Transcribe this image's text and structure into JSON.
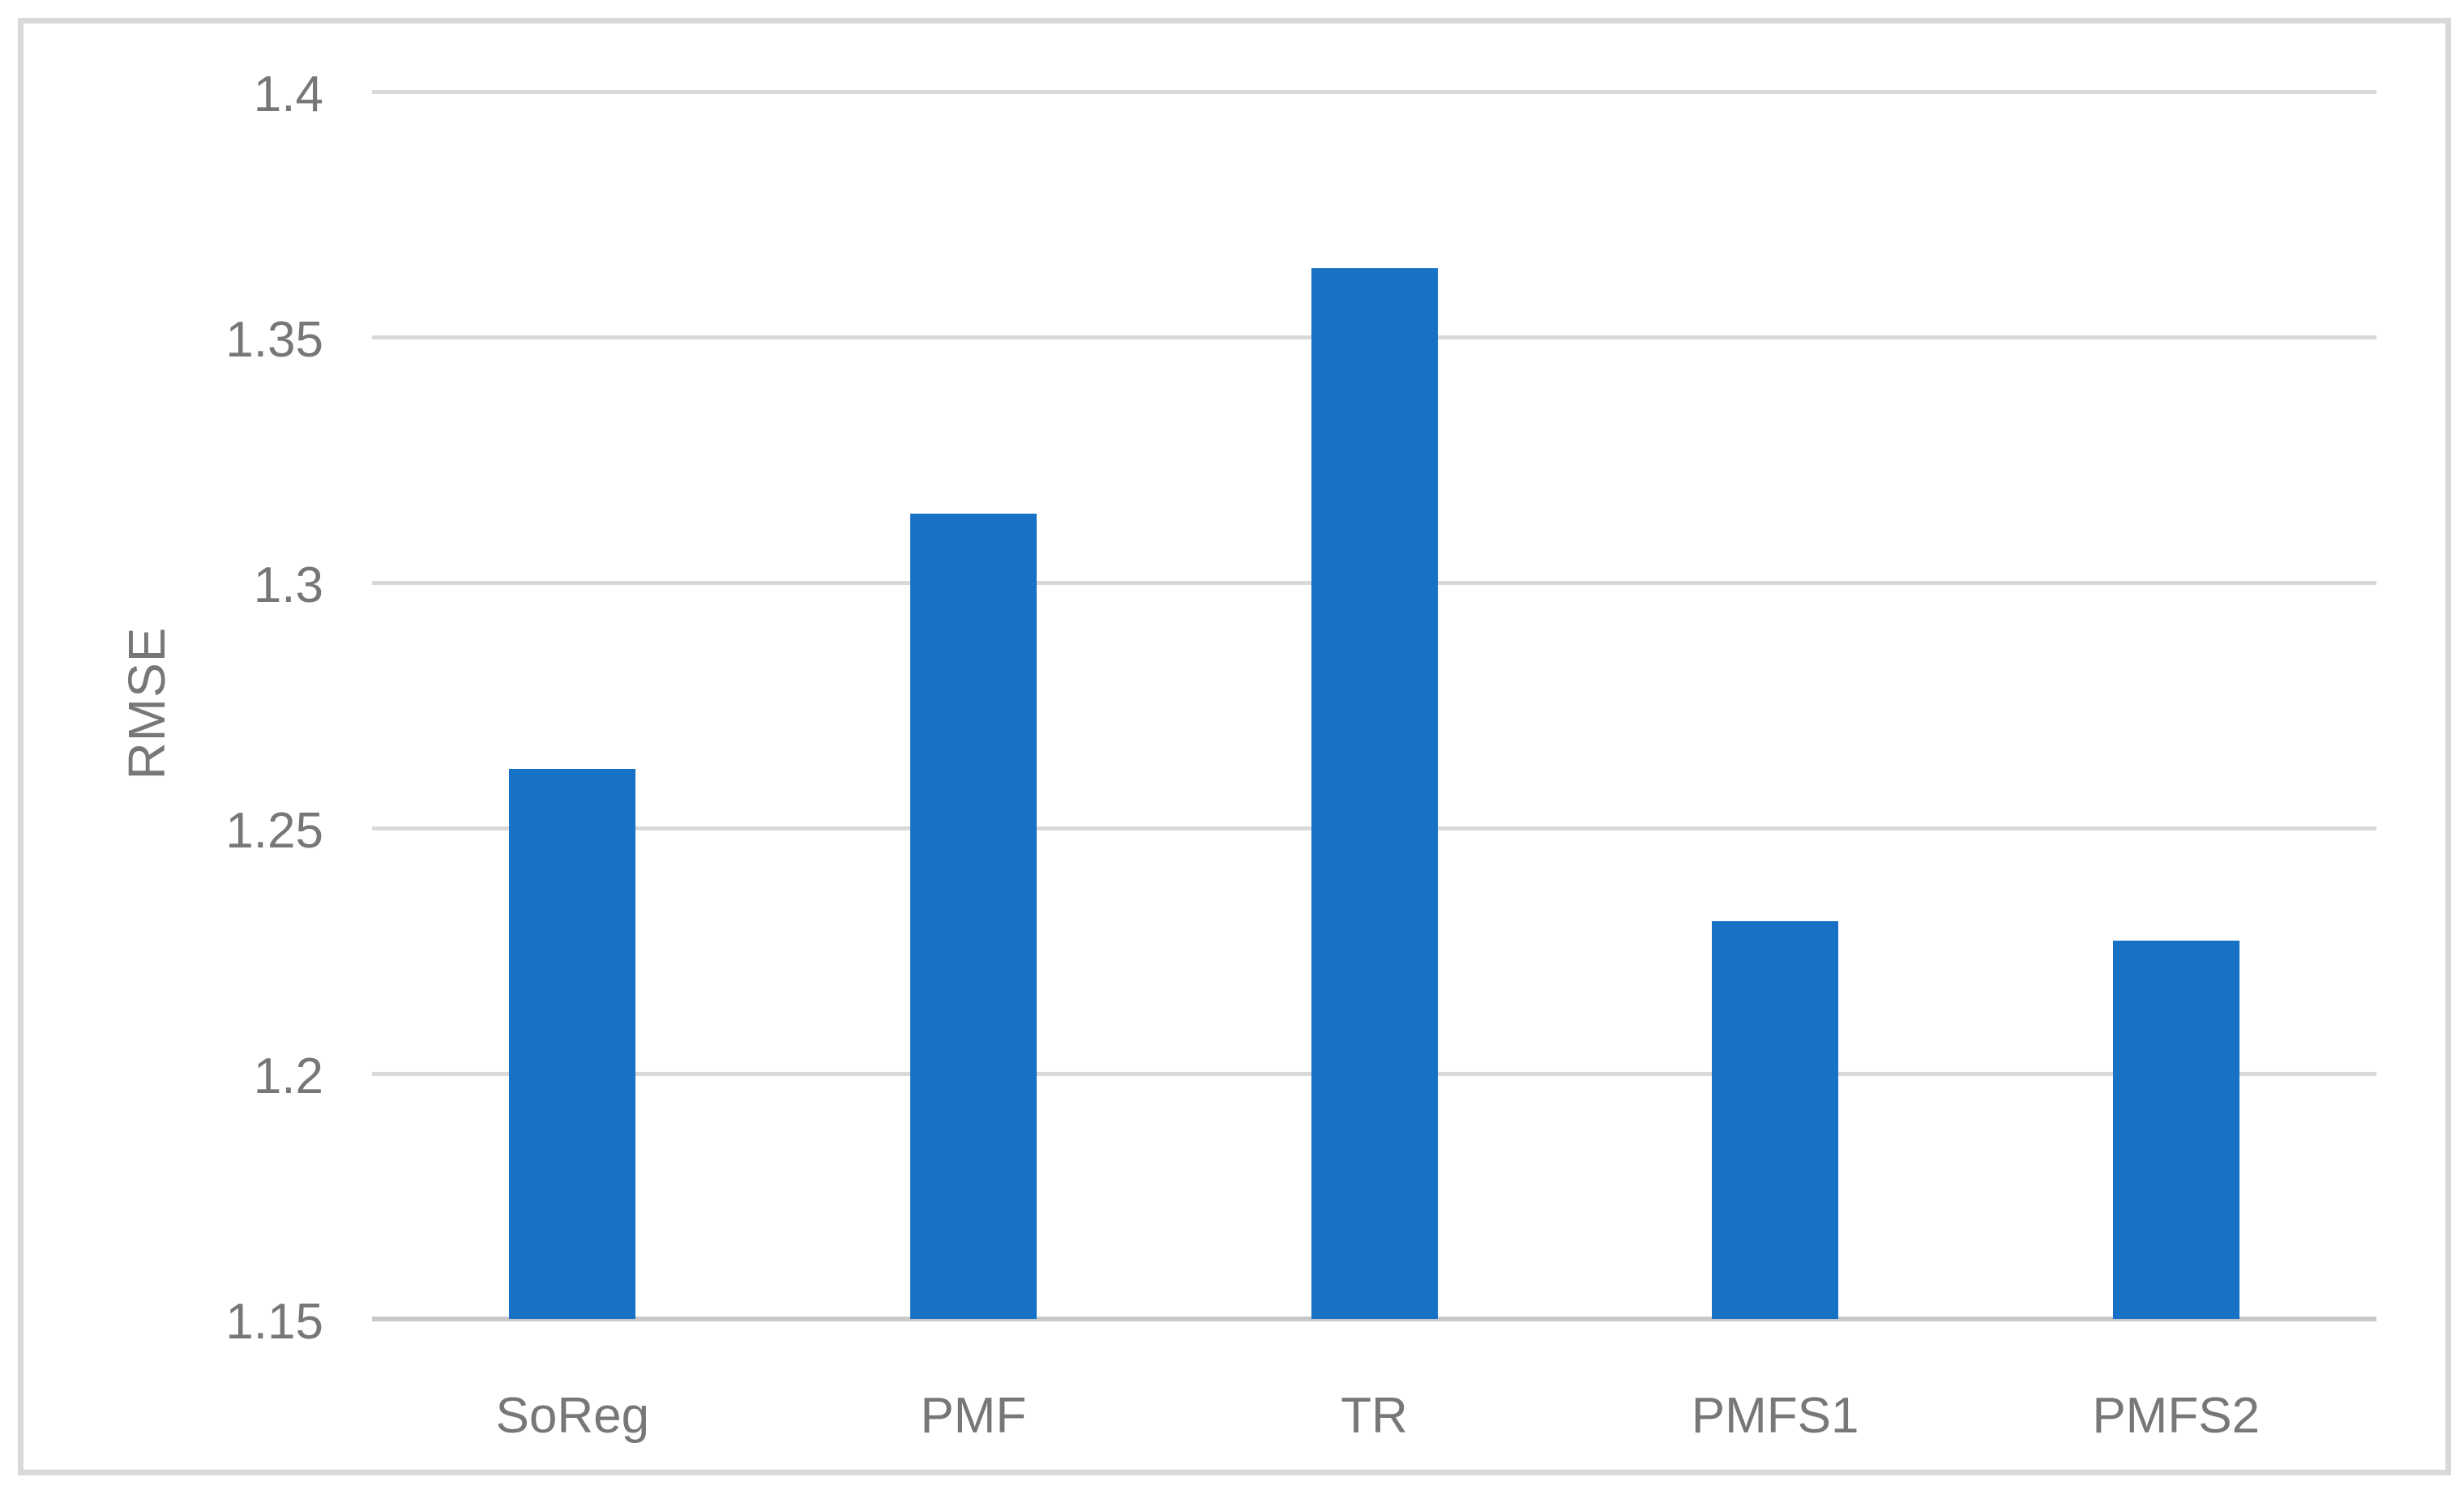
{
  "chart_data": {
    "type": "bar",
    "title": "",
    "categories": [
      "SoReg",
      "PMF",
      "TR",
      "PMFS1",
      "PMFS2"
    ],
    "values": [
      1.262,
      1.314,
      1.364,
      1.231,
      1.227
    ],
    "xlabel": "",
    "ylabel": "RMSE",
    "yticks": [
      {
        "label": "1.15",
        "value": 1.15
      },
      {
        "label": "1.2",
        "value": 1.2
      },
      {
        "label": "1.25",
        "value": 1.25
      },
      {
        "label": "1.3",
        "value": 1.3
      },
      {
        "label": "1.35",
        "value": 1.35
      },
      {
        "label": "1.4",
        "value": 1.4
      }
    ],
    "ylim": [
      1.15,
      1.4
    ],
    "grid": "horizontal-only",
    "legend": "none",
    "colors": {
      "bar": "#1772C6",
      "labels": "#777777",
      "gridline": "#D9D9D9",
      "axis_line": "#C9C9C9",
      "frame_border": "#D9D9D9",
      "background": "#FFFFFF"
    }
  }
}
